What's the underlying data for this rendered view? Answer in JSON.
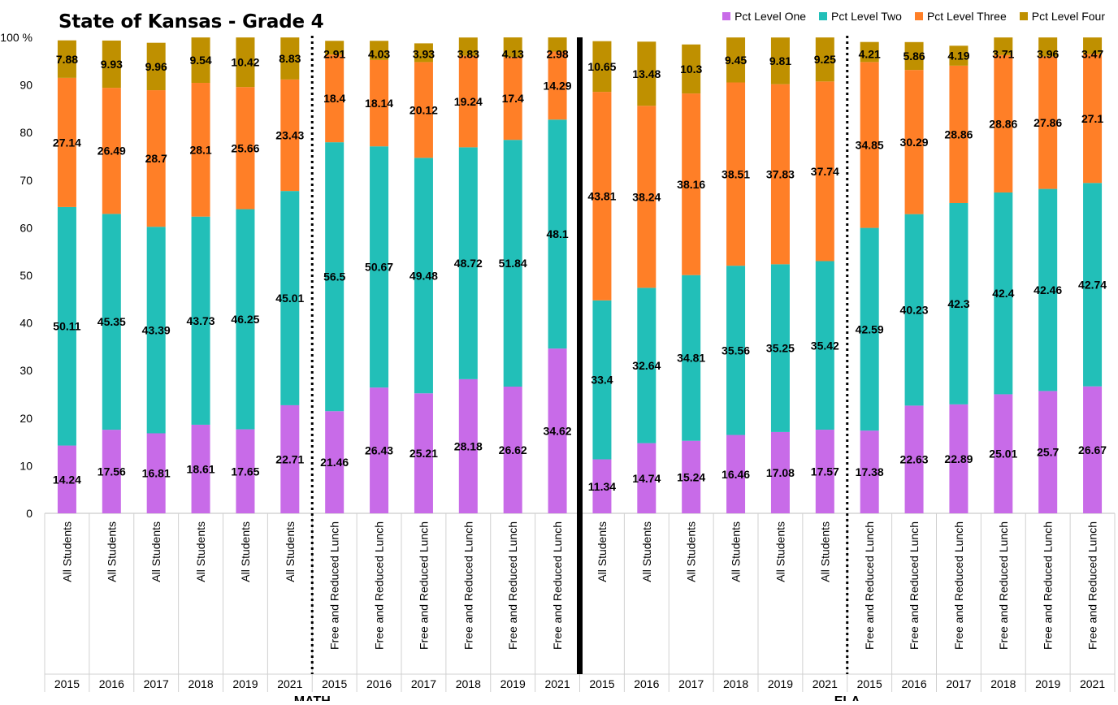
{
  "chart_data": {
    "type": "bar",
    "stacked": true,
    "title": "State of Kansas - Grade 4",
    "ylim": [
      0,
      100
    ],
    "yticks": [
      "0",
      "10",
      "20",
      "30",
      "40",
      "50",
      "60",
      "70",
      "80",
      "90",
      "100 %"
    ],
    "grid": false,
    "legend_position": "top-right",
    "categories": [
      "All Students",
      "All Students",
      "All Students",
      "All Students",
      "All Students",
      "All Students",
      "Free and Reduced Lunch",
      "Free and Reduced Lunch",
      "Free and Reduced Lunch",
      "Free and Reduced Lunch",
      "Free and Reduced Lunch",
      "Free and Reduced Lunch",
      "All Students",
      "All Students",
      "All Students",
      "All Students",
      "All Students",
      "All Students",
      "Free and Reduced Lunch",
      "Free and Reduced Lunch",
      "Free and Reduced Lunch",
      "Free and Reduced Lunch",
      "Free and Reduced Lunch",
      "Free and Reduced Lunch"
    ],
    "years": [
      "2015",
      "2016",
      "2017",
      "2018",
      "2019",
      "2021",
      "2015",
      "2016",
      "2017",
      "2018",
      "2019",
      "2021",
      "2015",
      "2016",
      "2017",
      "2018",
      "2019",
      "2021",
      "2015",
      "2016",
      "2017",
      "2018",
      "2019",
      "2021"
    ],
    "subjects": [
      {
        "label": "MATH",
        "start": 0,
        "end": 11
      },
      {
        "label": "ELA",
        "start": 12,
        "end": 23
      }
    ],
    "series": [
      {
        "name": "Pct Level One",
        "color": "#C86BE8",
        "values": [
          14.24,
          17.56,
          16.81,
          18.61,
          17.65,
          22.71,
          21.46,
          26.43,
          25.21,
          28.18,
          26.62,
          34.62,
          11.34,
          14.74,
          15.24,
          16.46,
          17.08,
          17.57,
          17.38,
          22.63,
          22.89,
          25.01,
          25.7,
          26.67
        ],
        "labels": [
          "14.24",
          "17.56",
          "16.81",
          "18.61",
          "17.65",
          "22.71",
          "21.46",
          "26.43",
          "25.21",
          "28.18",
          "26.62",
          "34.62",
          "11.34",
          "14.74",
          "15.24",
          "16.46",
          "17.08",
          "17.57",
          "17.38",
          "22.63",
          "22.89",
          "25.01",
          "25.7",
          "26.67"
        ]
      },
      {
        "name": "Pct Level Two",
        "color": "#22BFB8",
        "values": [
          50.11,
          45.35,
          43.39,
          43.73,
          46.25,
          45.01,
          56.5,
          50.67,
          49.48,
          48.72,
          51.84,
          48.1,
          33.4,
          32.64,
          34.81,
          35.56,
          35.25,
          35.42,
          42.59,
          40.23,
          42.3,
          42.4,
          42.46,
          42.74
        ],
        "labels": [
          "50.11",
          "45.35",
          "43.39",
          "43.73",
          "46.25",
          "45.01",
          "56.5",
          "50.67",
          "49.48",
          "48.72",
          "51.84",
          "48.1",
          "33.4",
          "32.64",
          "34.81",
          "35.56",
          "35.25",
          "35.42",
          "42.59",
          "40.23",
          "42.3",
          "42.4",
          "42.46",
          "42.74"
        ]
      },
      {
        "name": "Pct Level Three",
        "color": "#FF7F27",
        "values": [
          27.14,
          26.49,
          28.7,
          28.1,
          25.66,
          23.43,
          18.4,
          18.14,
          20.12,
          19.24,
          17.4,
          14.29,
          43.81,
          38.24,
          38.16,
          38.51,
          37.83,
          37.74,
          34.85,
          30.29,
          28.86,
          28.86,
          27.86,
          27.1
        ],
        "labels": [
          "27.14",
          "26.49",
          "28.7",
          "28.1",
          "25.66",
          "23.43",
          "18.4",
          "18.14",
          "20.12",
          "19.24",
          "17.4",
          "14.29",
          "43.81",
          "38.24",
          "38.16",
          "38.51",
          "37.83",
          "37.74",
          "34.85",
          "30.29",
          "28.86",
          "28.86",
          "27.86",
          "27.1"
        ]
      },
      {
        "name": "Pct Level Four",
        "color": "#BF9000",
        "values": [
          7.88,
          9.93,
          9.96,
          9.54,
          10.42,
          8.83,
          2.91,
          4.03,
          3.93,
          3.83,
          4.13,
          2.98,
          10.65,
          13.48,
          10.3,
          9.45,
          9.81,
          9.25,
          4.21,
          5.86,
          4.19,
          3.71,
          3.96,
          3.47
        ],
        "labels": [
          "7.88",
          "9.93",
          "9.96",
          "9.54",
          "10.42",
          "8.83",
          "2.91",
          "4.03",
          "3.93",
          "3.83",
          "4.13",
          "2.98",
          "10.65",
          "13.48",
          "10.3",
          "9.45",
          "9.81",
          "9.25",
          "4.21",
          "5.86",
          "4.19",
          "3.71",
          "3.96",
          "3.47"
        ]
      }
    ]
  }
}
